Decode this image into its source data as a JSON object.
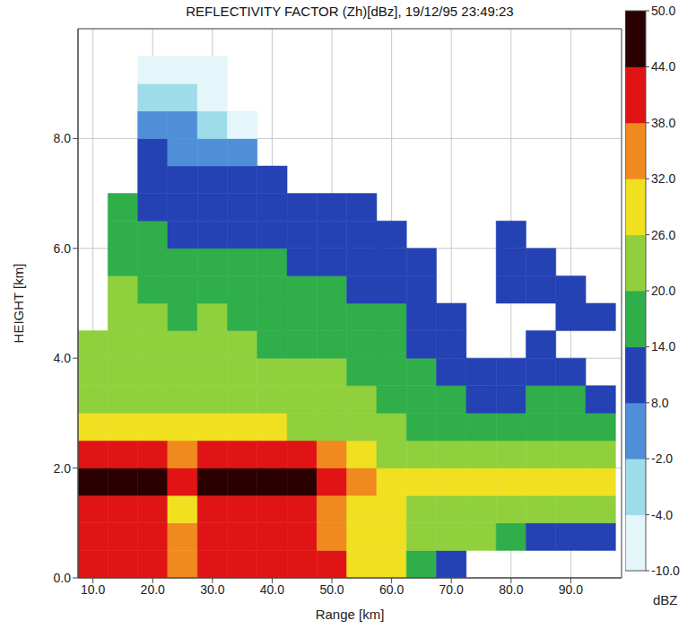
{
  "chart_data": {
    "type": "heatmap",
    "title": "REFLECTIVITY FACTOR (Zh)[dBz], 19/12/95 23:49:23",
    "x_label": "Range [km]",
    "y_label": "HEIGHT [km]",
    "xlim": [
      7.5,
      98.5
    ],
    "ylim": [
      0,
      10
    ],
    "xticks": [
      {
        "value": 10,
        "label": "10.0"
      },
      {
        "value": 20,
        "label": "20.0"
      },
      {
        "value": 30,
        "label": "30.0"
      },
      {
        "value": 40,
        "label": "40.0"
      },
      {
        "value": 50,
        "label": "50.0"
      },
      {
        "value": 60,
        "label": "60.0"
      },
      {
        "value": 70,
        "label": "70.0"
      },
      {
        "value": 80,
        "label": "80.0"
      },
      {
        "value": 90,
        "label": "90.0"
      }
    ],
    "yticks": [
      {
        "value": 0,
        "label": "0.0"
      },
      {
        "value": 2,
        "label": "2.0"
      },
      {
        "value": 4,
        "label": "4.0"
      },
      {
        "value": 6,
        "label": "6.0"
      },
      {
        "value": 8,
        "label": "8.0"
      }
    ],
    "grid": true,
    "x": [
      10,
      15,
      20,
      25,
      30,
      35,
      40,
      45,
      50,
      55,
      60,
      65,
      70,
      75,
      80,
      85,
      90,
      95
    ],
    "y": [
      0.25,
      0.75,
      1.25,
      1.75,
      2.25,
      2.75,
      3.25,
      3.75,
      4.25,
      4.75,
      5.25,
      5.75,
      6.25,
      6.75,
      7.25,
      7.75,
      8.25,
      8.75,
      9.25,
      9.75
    ],
    "cells": [
      [
        42,
        40,
        40,
        46,
        40,
        26,
        24,
        22,
        20,
        null,
        null,
        null,
        null,
        null,
        null,
        null,
        null,
        null,
        null,
        null
      ],
      [
        42,
        42,
        40,
        48,
        42,
        28,
        24,
        22,
        20,
        20,
        20,
        18,
        16,
        14,
        null,
        null,
        null,
        null,
        null,
        null
      ],
      [
        40,
        40,
        38,
        48,
        40,
        28,
        24,
        22,
        20,
        20,
        18,
        18,
        14,
        12,
        10,
        8,
        2,
        -4,
        -6,
        null
      ],
      [
        36,
        32,
        30,
        40,
        36,
        26,
        24,
        22,
        20,
        18,
        18,
        16,
        12,
        10,
        10,
        4,
        -2,
        -4,
        -6,
        null
      ],
      [
        42,
        42,
        40,
        48,
        40,
        26,
        24,
        22,
        20,
        20,
        18,
        16,
        12,
        10,
        10,
        -2,
        -4,
        -6,
        -6,
        null
      ],
      [
        42,
        42,
        40,
        48,
        40,
        26,
        24,
        22,
        20,
        18,
        16,
        14,
        12,
        10,
        8,
        -2,
        -6,
        null,
        null,
        null
      ],
      [
        42,
        42,
        40,
        48,
        40,
        26,
        22,
        20,
        18,
        16,
        14,
        14,
        12,
        10,
        8,
        null,
        null,
        null,
        null,
        null
      ],
      [
        42,
        42,
        40,
        48,
        38,
        24,
        22,
        20,
        18,
        16,
        14,
        12,
        10,
        10,
        null,
        null,
        null,
        null,
        null,
        null
      ],
      [
        38,
        36,
        34,
        40,
        32,
        24,
        22,
        20,
        18,
        16,
        14,
        12,
        10,
        8,
        null,
        null,
        null,
        null,
        null,
        null
      ],
      [
        28,
        28,
        28,
        32,
        26,
        22,
        20,
        18,
        16,
        14,
        12,
        12,
        10,
        8,
        null,
        null,
        null,
        null,
        null,
        null
      ],
      [
        26,
        26,
        26,
        30,
        24,
        20,
        18,
        18,
        16,
        14,
        12,
        10,
        10,
        null,
        null,
        null,
        null,
        null,
        null,
        null
      ],
      [
        14,
        24,
        24,
        30,
        22,
        18,
        16,
        14,
        12,
        12,
        10,
        10,
        null,
        null,
        null,
        null,
        null,
        null,
        null,
        null
      ],
      [
        12,
        22,
        22,
        26,
        20,
        16,
        14,
        12,
        10,
        10,
        null,
        null,
        null,
        null,
        null,
        null,
        null,
        null,
        null,
        null
      ],
      [
        null,
        20,
        22,
        28,
        20,
        16,
        12,
        10,
        null,
        null,
        null,
        null,
        null,
        null,
        null,
        null,
        null,
        null,
        null,
        null
      ],
      [
        null,
        14,
        20,
        26,
        20,
        16,
        12,
        10,
        null,
        null,
        10,
        10,
        8,
        null,
        null,
        null,
        null,
        null,
        null,
        null
      ],
      [
        null,
        12,
        22,
        30,
        20,
        16,
        14,
        12,
        10,
        null,
        10,
        10,
        null,
        null,
        null,
        null,
        null,
        null,
        null,
        null
      ],
      [
        null,
        12,
        20,
        28,
        20,
        16,
        14,
        12,
        null,
        10,
        10,
        null,
        null,
        null,
        null,
        null,
        null,
        null,
        null,
        null
      ],
      [
        null,
        12,
        20,
        26,
        20,
        14,
        12,
        null,
        null,
        10,
        null,
        null,
        null,
        null,
        null,
        null,
        null,
        null,
        null,
        null
      ]
    ],
    "colorbar": {
      "label": "dBZ",
      "range": [
        -10,
        50
      ],
      "ticks": [
        {
          "value": -10,
          "label": "-10.0"
        },
        {
          "value": -4,
          "label": "-4.0"
        },
        {
          "value": -2,
          "label": "-2.0"
        },
        {
          "value": 8,
          "label": "8.0"
        },
        {
          "value": 14,
          "label": "14.0"
        },
        {
          "value": 20,
          "label": "20.0"
        },
        {
          "value": 26,
          "label": "26.0"
        },
        {
          "value": 32,
          "label": "32.0"
        },
        {
          "value": 38,
          "label": "38.0"
        },
        {
          "value": 44,
          "label": "44.0"
        },
        {
          "value": 50,
          "label": "50.0"
        }
      ],
      "colors": [
        "#e4f6fa",
        "#9fdcea",
        "#4f8fd8",
        "#2442b4",
        "#2fae4a",
        "#8fd03c",
        "#f0e020",
        "#f08a1e",
        "#e01414",
        "#2a0000"
      ]
    }
  }
}
